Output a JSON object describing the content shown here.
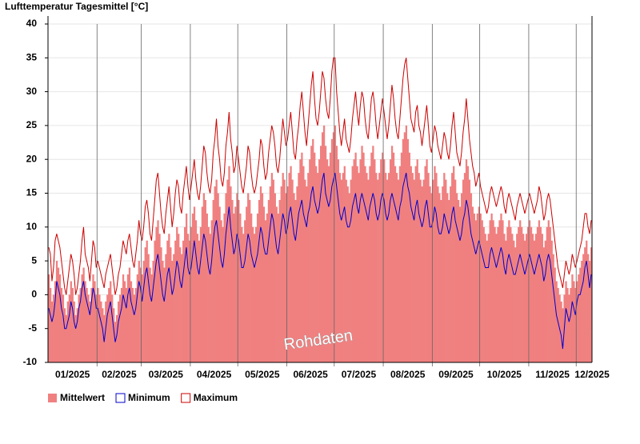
{
  "chart_data": {
    "type": "daily-temperature",
    "title": "Lufttemperatur Tagesmittel [°C]",
    "annotation": "Rohdaten",
    "xlim": [
      0,
      344
    ],
    "xticks": [
      {
        "value": 0,
        "label": "01/2025"
      },
      {
        "value": 31,
        "label": "02/2025"
      },
      {
        "value": 59,
        "label": "03/2025"
      },
      {
        "value": 90,
        "label": "04/2025"
      },
      {
        "value": 120,
        "label": "05/2025"
      },
      {
        "value": 151,
        "label": "06/2025"
      },
      {
        "value": 181,
        "label": "07/2025"
      },
      {
        "value": 212,
        "label": "08/2025"
      },
      {
        "value": 243,
        "label": "09/2025"
      },
      {
        "value": 273,
        "label": "10/2025"
      },
      {
        "value": 304,
        "label": "11/2025"
      },
      {
        "value": 334,
        "label": "12/2025"
      }
    ],
    "ylim": [
      -10,
      40
    ],
    "yticks": [
      -10,
      -5,
      0,
      5,
      10,
      15,
      20,
      25,
      30,
      35,
      40
    ],
    "grid": true,
    "series": [
      {
        "name": "Mittelwert",
        "kind": "bar",
        "color": "#f08080",
        "values": [
          3,
          1,
          -1,
          0,
          2,
          5,
          4,
          3,
          1,
          0,
          -2,
          -3,
          -1,
          0,
          2,
          1,
          -1,
          -3,
          -2,
          0,
          1,
          3,
          4,
          2,
          1,
          0,
          -1,
          1,
          3,
          2,
          0,
          1,
          0,
          -1,
          -2,
          -3,
          -1,
          0,
          1,
          2,
          0,
          -2,
          -4,
          -3,
          -1,
          0,
          1,
          3,
          2,
          1,
          3,
          4,
          2,
          1,
          0,
          1,
          3,
          5,
          4,
          3,
          5,
          7,
          8,
          6,
          4,
          3,
          5,
          8,
          10,
          11,
          9,
          7,
          5,
          4,
          6,
          8,
          9,
          7,
          5,
          6,
          8,
          10,
          9,
          7,
          6,
          8,
          10,
          12,
          9,
          8,
          10,
          12,
          13,
          11,
          9,
          8,
          10,
          13,
          15,
          14,
          12,
          10,
          9,
          11,
          14,
          16,
          17,
          15,
          13,
          11,
          10,
          12,
          15,
          17,
          19,
          16,
          14,
          12,
          13,
          15,
          14,
          12,
          10,
          9,
          11,
          13,
          15,
          14,
          12,
          10,
          9,
          10,
          12,
          14,
          16,
          15,
          13,
          11,
          12,
          14,
          16,
          18,
          17,
          15,
          13,
          12,
          14,
          16,
          18,
          17,
          15,
          16,
          18,
          19,
          17,
          15,
          14,
          16,
          18,
          20,
          21,
          19,
          17,
          16,
          18,
          20,
          22,
          23,
          21,
          19,
          18,
          20,
          22,
          24,
          25,
          22,
          20,
          19,
          21,
          23,
          24,
          25,
          22,
          20,
          18,
          17,
          18,
          19,
          17,
          16,
          15,
          17,
          19,
          20,
          21,
          19,
          18,
          20,
          22,
          21,
          19,
          18,
          17,
          19,
          21,
          22,
          20,
          18,
          17,
          18,
          20,
          21,
          20,
          18,
          17,
          18,
          20,
          22,
          21,
          19,
          18,
          17,
          19,
          21,
          23,
          24,
          25,
          23,
          21,
          19,
          18,
          17,
          19,
          20,
          18,
          17,
          16,
          17,
          19,
          20,
          18,
          16,
          15,
          17,
          19,
          18,
          16,
          15,
          14,
          16,
          18,
          17,
          15,
          14,
          16,
          18,
          19,
          17,
          15,
          14,
          13,
          15,
          17,
          18,
          20,
          19,
          17,
          15,
          13,
          12,
          11,
          12,
          13,
          12,
          11,
          10,
          9,
          8,
          9,
          11,
          12,
          11,
          10,
          9,
          10,
          11,
          12,
          11,
          9,
          8,
          10,
          11,
          10,
          9,
          8,
          7,
          9,
          10,
          11,
          10,
          9,
          8,
          9,
          10,
          11,
          10,
          9,
          8,
          9,
          10,
          11,
          10,
          9,
          7,
          8,
          10,
          11,
          10,
          8,
          6,
          4,
          2,
          1,
          0,
          -1,
          -2,
          0,
          2,
          1,
          0,
          1,
          3,
          2,
          1,
          2,
          3,
          4,
          5,
          6,
          7,
          8,
          6,
          5,
          7
        ]
      },
      {
        "name": "Minimum",
        "kind": "line",
        "color": "#0000cc",
        "values": [
          -2,
          -3,
          -4,
          -3,
          -1,
          2,
          1,
          0,
          -2,
          -3,
          -5,
          -5,
          -4,
          -3,
          -1,
          -2,
          -4,
          -5,
          -4,
          -2,
          -1,
          1,
          2,
          0,
          -1,
          -2,
          -3,
          -1,
          1,
          0,
          -2,
          -2,
          -3,
          -4,
          -5,
          -7,
          -5,
          -3,
          -2,
          -1,
          -3,
          -5,
          -7,
          -6,
          -4,
          -3,
          -2,
          0,
          -1,
          -2,
          0,
          1,
          -1,
          -2,
          -3,
          -2,
          0,
          2,
          1,
          -1,
          1,
          3,
          4,
          2,
          0,
          -1,
          1,
          3,
          5,
          6,
          4,
          2,
          0,
          -1,
          1,
          3,
          4,
          2,
          0,
          1,
          3,
          5,
          4,
          2,
          1,
          3,
          5,
          7,
          4,
          3,
          4,
          6,
          8,
          6,
          4,
          3,
          5,
          7,
          9,
          8,
          6,
          4,
          3,
          5,
          8,
          10,
          11,
          9,
          7,
          5,
          4,
          6,
          9,
          11,
          13,
          10,
          8,
          6,
          7,
          9,
          8,
          6,
          4,
          4,
          5,
          7,
          9,
          8,
          6,
          5,
          4,
          5,
          6,
          8,
          10,
          9,
          7,
          6,
          6,
          8,
          10,
          12,
          11,
          9,
          7,
          6,
          8,
          10,
          12,
          11,
          9,
          10,
          12,
          13,
          11,
          9,
          8,
          10,
          12,
          13,
          14,
          12,
          11,
          10,
          12,
          13,
          15,
          16,
          14,
          13,
          12,
          13,
          15,
          17,
          18,
          15,
          14,
          13,
          14,
          16,
          17,
          18,
          16,
          14,
          12,
          11,
          12,
          13,
          11,
          10,
          10,
          11,
          13,
          14,
          15,
          13,
          12,
          14,
          15,
          14,
          13,
          12,
          11,
          13,
          14,
          15,
          14,
          12,
          11,
          12,
          14,
          15,
          14,
          12,
          11,
          12,
          14,
          15,
          14,
          13,
          12,
          11,
          13,
          14,
          16,
          17,
          18,
          16,
          15,
          13,
          12,
          11,
          13,
          14,
          12,
          11,
          10,
          11,
          13,
          14,
          12,
          10,
          10,
          11,
          13,
          12,
          10,
          9,
          9,
          10,
          12,
          11,
          10,
          9,
          10,
          12,
          13,
          11,
          10,
          9,
          8,
          9,
          11,
          12,
          14,
          13,
          11,
          9,
          8,
          7,
          6,
          7,
          8,
          7,
          6,
          5,
          4,
          4,
          4,
          6,
          7,
          6,
          5,
          4,
          5,
          6,
          7,
          6,
          4,
          3,
          5,
          6,
          5,
          4,
          3,
          3,
          4,
          5,
          6,
          5,
          4,
          3,
          4,
          5,
          6,
          5,
          4,
          3,
          4,
          5,
          6,
          5,
          4,
          2,
          3,
          5,
          6,
          5,
          3,
          1,
          -1,
          -3,
          -4,
          -5,
          -6,
          -8,
          -5,
          -2,
          -3,
          -4,
          -3,
          -1,
          -2,
          -3,
          -1,
          0,
          0,
          1,
          2,
          4,
          5,
          3,
          1,
          3
        ]
      },
      {
        "name": "Maximum",
        "kind": "line",
        "color": "#cc0000",
        "values": [
          7,
          6,
          2,
          4,
          8,
          9,
          8,
          7,
          5,
          3,
          1,
          0,
          2,
          4,
          6,
          5,
          3,
          0,
          1,
          3,
          5,
          8,
          10,
          6,
          5,
          4,
          2,
          5,
          8,
          7,
          4,
          5,
          4,
          3,
          2,
          1,
          3,
          4,
          5,
          6,
          4,
          2,
          0,
          1,
          3,
          4,
          6,
          8,
          7,
          6,
          8,
          9,
          7,
          5,
          4,
          6,
          8,
          11,
          9,
          8,
          10,
          13,
          14,
          12,
          9,
          8,
          11,
          14,
          17,
          18,
          15,
          12,
          10,
          9,
          12,
          14,
          16,
          13,
          10,
          12,
          15,
          17,
          16,
          13,
          12,
          15,
          17,
          19,
          16,
          14,
          16,
          18,
          20,
          17,
          15,
          14,
          16,
          19,
          22,
          21,
          18,
          16,
          15,
          17,
          21,
          23,
          26,
          22,
          20,
          17,
          16,
          18,
          22,
          24,
          27,
          23,
          21,
          18,
          19,
          22,
          20,
          18,
          16,
          15,
          17,
          19,
          22,
          21,
          18,
          16,
          15,
          16,
          18,
          20,
          23,
          22,
          19,
          17,
          18,
          21,
          23,
          25,
          24,
          22,
          19,
          18,
          20,
          23,
          26,
          24,
          22,
          23,
          25,
          27,
          24,
          21,
          20,
          23,
          25,
          28,
          30,
          27,
          24,
          22,
          25,
          28,
          31,
          33,
          29,
          26,
          25,
          27,
          30,
          33,
          32,
          29,
          27,
          26,
          29,
          33,
          35,
          35,
          30,
          27,
          24,
          22,
          24,
          26,
          23,
          22,
          21,
          23,
          26,
          28,
          30,
          27,
          25,
          28,
          30,
          29,
          26,
          24,
          23,
          26,
          29,
          30,
          28,
          25,
          23,
          25,
          27,
          29,
          27,
          25,
          23,
          25,
          28,
          31,
          29,
          26,
          24,
          23,
          26,
          29,
          32,
          34,
          35,
          32,
          29,
          26,
          25,
          24,
          27,
          28,
          25,
          24,
          22,
          24,
          26,
          28,
          25,
          22,
          21,
          23,
          25,
          24,
          22,
          21,
          20,
          22,
          24,
          23,
          21,
          20,
          22,
          25,
          27,
          24,
          21,
          20,
          19,
          21,
          24,
          26,
          29,
          26,
          23,
          21,
          19,
          18,
          16,
          17,
          18,
          16,
          15,
          14,
          13,
          12,
          13,
          15,
          16,
          15,
          14,
          13,
          14,
          15,
          16,
          15,
          13,
          12,
          14,
          15,
          14,
          13,
          12,
          11,
          13,
          14,
          15,
          14,
          13,
          12,
          13,
          14,
          15,
          14,
          13,
          12,
          13,
          14,
          16,
          15,
          13,
          11,
          12,
          14,
          15,
          14,
          12,
          10,
          8,
          6,
          4,
          3,
          2,
          1,
          3,
          5,
          4,
          3,
          4,
          6,
          5,
          4,
          5,
          6,
          7,
          8,
          10,
          12,
          12,
          10,
          9,
          11
        ]
      }
    ]
  }
}
